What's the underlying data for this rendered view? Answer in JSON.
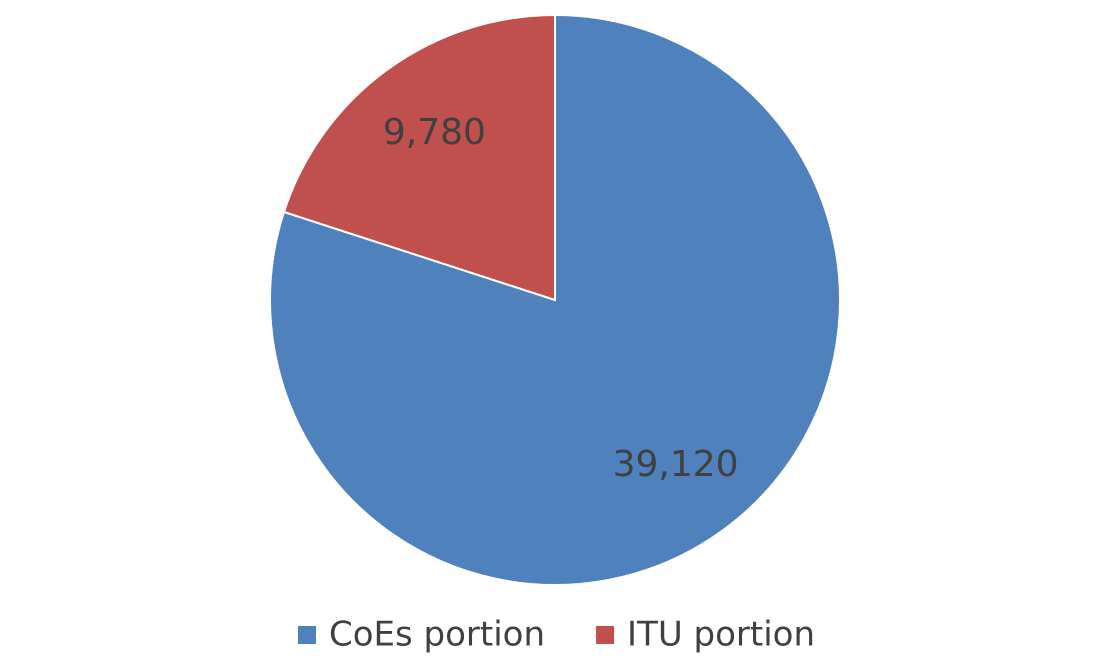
{
  "chart_data": {
    "type": "pie",
    "categories": [
      "CoEs portion",
      "ITU portion"
    ],
    "values": [
      39120,
      9780
    ],
    "value_labels": [
      "39,120",
      "9,780"
    ],
    "colors": [
      "#4f81bd",
      "#c0504d"
    ],
    "legend": "bottom"
  }
}
